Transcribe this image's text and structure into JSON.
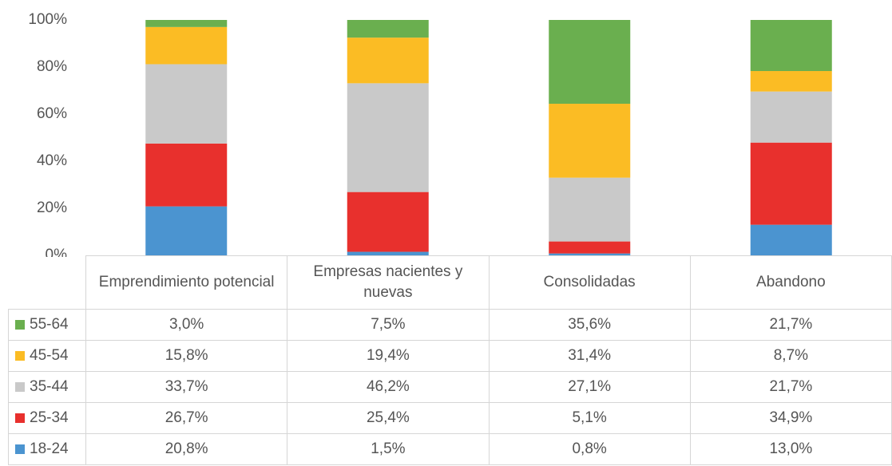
{
  "chart_data": {
    "type": "stacked_bar",
    "categories": [
      "Emprendimiento potencial",
      "Empresas nacientes y nuevas",
      "Consolidadas",
      "Abandono"
    ],
    "series": [
      {
        "name": "55-64",
        "color": "#6aaf4f",
        "values": [
          3.0,
          7.5,
          35.6,
          21.7
        ],
        "value_labels": [
          "3,0%",
          "7,5%",
          "35,6%",
          "21,7%"
        ]
      },
      {
        "name": "45-54",
        "color": "#fbbc24",
        "values": [
          15.8,
          19.4,
          31.4,
          8.7
        ],
        "value_labels": [
          "15,8%",
          "19,4%",
          "31,4%",
          "8,7%"
        ]
      },
      {
        "name": "35-44",
        "color": "#c9c9c9",
        "values": [
          33.7,
          46.2,
          27.1,
          21.7
        ],
        "value_labels": [
          "33,7%",
          "46,2%",
          "27,1%",
          "21,7%"
        ]
      },
      {
        "name": "25-34",
        "color": "#e8302d",
        "values": [
          26.7,
          25.4,
          5.1,
          34.9
        ],
        "value_labels": [
          "26,7%",
          "25,4%",
          "5,1%",
          "34,9%"
        ]
      },
      {
        "name": "18-24",
        "color": "#4b94d0",
        "values": [
          20.8,
          1.5,
          0.8,
          13.0
        ],
        "value_labels": [
          "20,8%",
          "1,5%",
          "0,8%",
          "13,0%"
        ]
      }
    ],
    "ylim": [
      0,
      100
    ],
    "yticks": [
      {
        "value": 0,
        "label": "0%"
      },
      {
        "value": 20,
        "label": "20%"
      },
      {
        "value": 40,
        "label": "40%"
      },
      {
        "value": 60,
        "label": "60%"
      },
      {
        "value": 80,
        "label": "80%"
      },
      {
        "value": 100,
        "label": "100%"
      }
    ],
    "grid": false
  }
}
